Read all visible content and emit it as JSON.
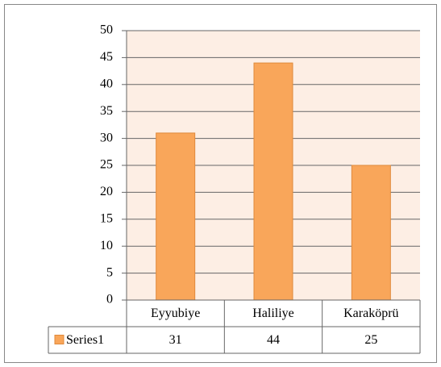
{
  "chart_data": {
    "type": "bar",
    "categories": [
      "Eyyubiye",
      "Haliliye",
      "Karaköprü"
    ],
    "series": [
      {
        "name": "Series1",
        "color": "#f9a65a",
        "values": [
          31,
          44,
          25
        ]
      }
    ],
    "ylim": [
      0,
      50
    ],
    "yticks": [
      0,
      5,
      10,
      15,
      20,
      25,
      30,
      35,
      40,
      45,
      50
    ],
    "grid": true,
    "data_table": true
  }
}
